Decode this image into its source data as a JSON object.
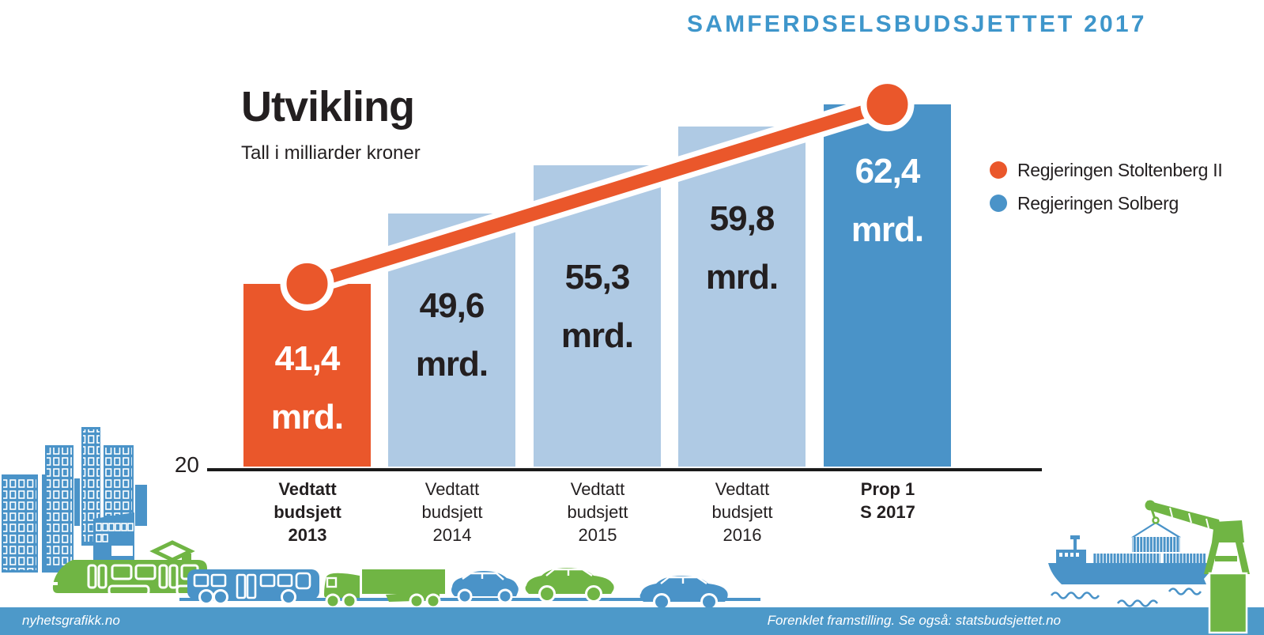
{
  "header": {
    "title": "SAMFERDSELSBUDSJETTET 2017"
  },
  "chart": {
    "heading": "Utvikling",
    "subheading": "Tall i milliarder kroner",
    "axis_baseline_label": "20"
  },
  "legend": {
    "items": [
      {
        "label": "Regjeringen Stoltenberg II",
        "color": "#EA572B"
      },
      {
        "label": "Regjeringen Solberg",
        "color": "#4A93C8"
      }
    ]
  },
  "chart_data": {
    "type": "bar",
    "title": "Utvikling",
    "subtitle": "Tall i milliarder kroner",
    "unit": "milliarder kroner (mrd.)",
    "baseline": 20,
    "grid": false,
    "legend_position": "right",
    "categories": [
      "Vedtatt budsjett 2013",
      "Vedtatt budsjett 2014",
      "Vedtatt budsjett 2015",
      "Vedtatt budsjett 2016",
      "Prop 1 S 2017"
    ],
    "values": [
      41.4,
      49.6,
      55.3,
      59.8,
      62.4
    ],
    "series": [
      {
        "name": "Regjeringen Stoltenberg II",
        "color": "#EA572B",
        "categories": [
          "Vedtatt budsjett 2013"
        ]
      },
      {
        "name": "Regjeringen Solberg",
        "color": "#4A93C8",
        "categories": [
          "Prop 1 S 2017"
        ]
      }
    ],
    "bars": [
      {
        "value": 41.4,
        "value_label": "41,4\nmrd.",
        "category_label": "Vedtatt\nbudsjett\n2013",
        "fill": "#EA572B",
        "text_color": "#FFFFFF",
        "category_bold": true
      },
      {
        "value": 49.6,
        "value_label": "49,6\nmrd.",
        "category_label": "Vedtatt\nbudsjett\n2014",
        "fill": "#AFCAE4",
        "text_color": "#231F20",
        "category_bold": false
      },
      {
        "value": 55.3,
        "value_label": "55,3\nmrd.",
        "category_label": "Vedtatt\nbudsjett\n2015",
        "fill": "#AFCAE4",
        "text_color": "#231F20",
        "category_bold": false
      },
      {
        "value": 59.8,
        "value_label": "59,8\nmrd.",
        "category_label": "Vedtatt\nbudsjett\n2016",
        "fill": "#AFCAE4",
        "text_color": "#231F20",
        "category_bold": false
      },
      {
        "value": 62.4,
        "value_label": "62,4\nmrd.",
        "category_label": "Prop 1\nS 2017",
        "fill": "#4A93C8",
        "text_color": "#FFFFFF",
        "category_bold": true
      }
    ],
    "trend_line": {
      "from_value": 41.4,
      "to_value": 62.4,
      "color": "#EA572B",
      "outline": "#FFFFFF"
    }
  },
  "footer": {
    "left_text": "nyhetsgrafikk.no",
    "right_text": "Forenklet framstilling. Se også: statsbudsjettet.no",
    "background": "#4D99C9"
  },
  "colors": {
    "accent_orange": "#EA572B",
    "bar_light_blue": "#AFCAE4",
    "bar_dark_blue": "#4A93C8",
    "title_blue": "#3E96CB",
    "green": "#70B544",
    "text_dark": "#231F20",
    "axis_black": "#1A1A1A"
  },
  "decorations": {
    "left": [
      "city-skyline",
      "tram",
      "bus",
      "truck",
      "hatchback-car",
      "green-sedan-car",
      "blue-sedan-car",
      "road-line"
    ],
    "right": [
      "cargo-ship",
      "deck-containers",
      "hanging-container",
      "harbor-crane",
      "water-waves"
    ]
  }
}
